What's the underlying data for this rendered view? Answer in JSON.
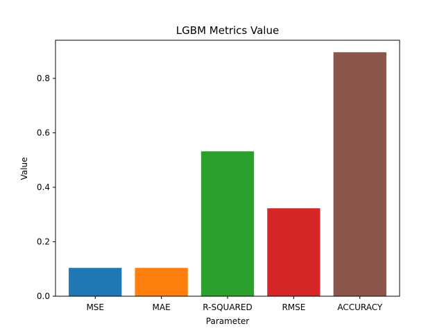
{
  "chart_data": {
    "type": "bar",
    "title": "LGBM Metrics Value",
    "xlabel": "Parameter",
    "ylabel": "Value",
    "categories": [
      "MSE",
      "MAE",
      "R-SQUARED",
      "RMSE",
      "ACCURACY"
    ],
    "values": [
      0.104,
      0.104,
      0.532,
      0.323,
      0.896
    ],
    "colors": [
      "#1f77b4",
      "#ff7f0e",
      "#2ca02c",
      "#d62728",
      "#8c564b"
    ],
    "ylim": [
      0,
      0.94
    ],
    "yticks": [
      0.0,
      0.2,
      0.4,
      0.6,
      0.8
    ],
    "ytick_labels": [
      "0.0",
      "0.2",
      "0.4",
      "0.6",
      "0.8"
    ],
    "grid": false,
    "legend": "none"
  }
}
